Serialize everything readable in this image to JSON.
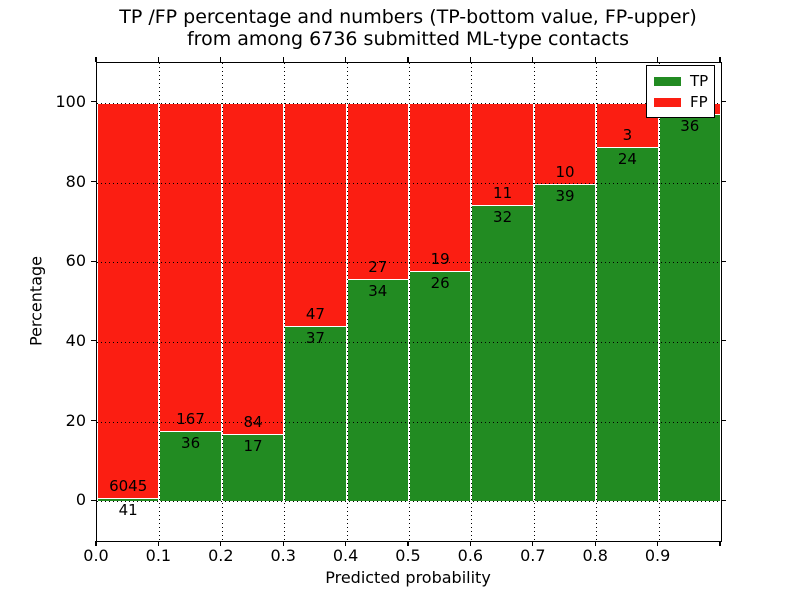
{
  "figure": {
    "title_line1": "TP /FP percentage and numbers (TP-bottom value, FP-upper)",
    "title_line2": "from among 6736 submitted ML-type contacts",
    "xlabel": "Predicted probability",
    "ylabel": "Percentage",
    "total_contacts": 6736
  },
  "legend": {
    "items": [
      {
        "label": "TP",
        "color": "#228b22"
      },
      {
        "label": "FP",
        "color": "#fb1e12"
      }
    ]
  },
  "chart_data": {
    "type": "bar",
    "stacked": true,
    "title": "TP /FP percentage and numbers (TP-bottom value, FP-upper) from among 6736 submitted ML-type contacts",
    "xlabel": "Predicted probability",
    "ylabel": "Percentage",
    "grid": "dotted",
    "legend_position": "upper right",
    "xlim": [
      0.0,
      1.0
    ],
    "ylim": [
      -10,
      110
    ],
    "x_ticks": [
      "0.0",
      "0.1",
      "0.2",
      "0.3",
      "0.4",
      "0.5",
      "0.6",
      "0.7",
      "0.8",
      "0.9"
    ],
    "y_ticks": [
      0,
      20,
      40,
      60,
      80,
      100
    ],
    "bin_width": 0.1,
    "series": [
      {
        "name": "TP",
        "color": "#228b22",
        "position": "bottom"
      },
      {
        "name": "FP",
        "color": "#fb1e12",
        "position": "top"
      }
    ],
    "bars": [
      {
        "bin": "0.0-0.1",
        "tp": 41,
        "fp": 6045,
        "tp_label": "41",
        "fp_label": "6045",
        "tp_pct": 0.67
      },
      {
        "bin": "0.1-0.2",
        "tp": 36,
        "fp": 167,
        "tp_label": "36",
        "fp_label": "167",
        "tp_pct": 17.73
      },
      {
        "bin": "0.2-0.3",
        "tp": 17,
        "fp": 84,
        "tp_label": "17",
        "fp_label": "84",
        "tp_pct": 16.83
      },
      {
        "bin": "0.3-0.4",
        "tp": 37,
        "fp": 47,
        "tp_label": "37",
        "fp_label": "47",
        "tp_pct": 44.05
      },
      {
        "bin": "0.4-0.5",
        "tp": 34,
        "fp": 27,
        "tp_label": "34",
        "fp_label": "27",
        "tp_pct": 55.74
      },
      {
        "bin": "0.5-0.6",
        "tp": 26,
        "fp": 19,
        "tp_label": "26",
        "fp_label": "19",
        "tp_pct": 57.78
      },
      {
        "bin": "0.6-0.7",
        "tp": 32,
        "fp": 11,
        "tp_label": "32",
        "fp_label": "11",
        "tp_pct": 74.42
      },
      {
        "bin": "0.7-0.8",
        "tp": 39,
        "fp": 10,
        "tp_label": "39",
        "fp_label": "10",
        "tp_pct": 79.59
      },
      {
        "bin": "0.8-0.9",
        "tp": 24,
        "fp": 3,
        "tp_label": "24",
        "fp_label": "3",
        "tp_pct": 88.89
      },
      {
        "bin": "0.9-1.0",
        "tp": 36,
        "fp": null,
        "tp_label": "36",
        "fp_label": "",
        "tp_pct": 97.3
      }
    ]
  }
}
